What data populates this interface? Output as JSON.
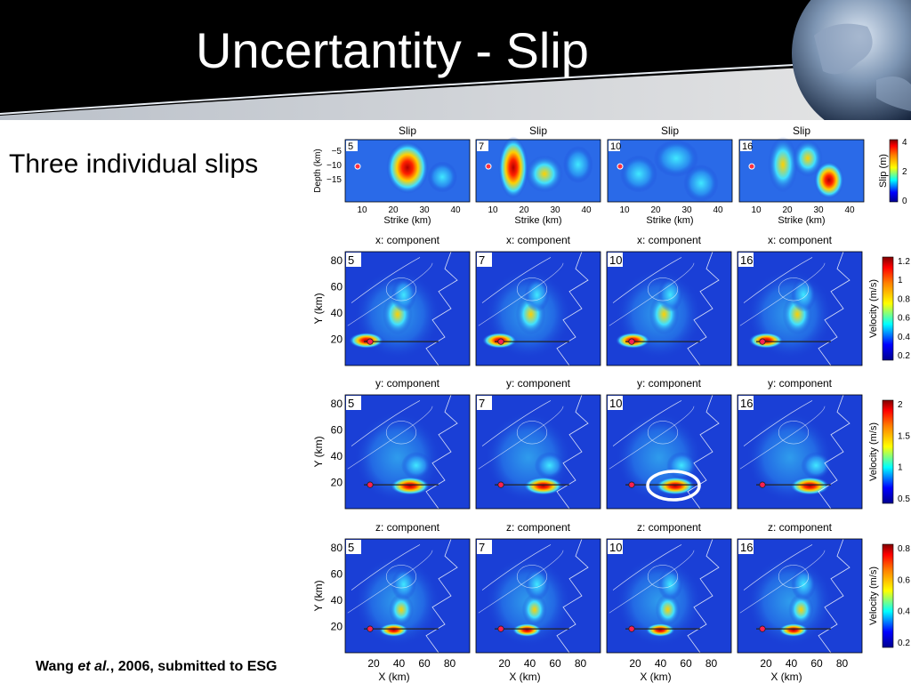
{
  "slide": {
    "title": "Uncertantity - Slip",
    "subtitle": "Three individual slips",
    "citation": {
      "author": "Wang ",
      "etal": "et al.",
      "rest": ", 2006, submitted to ESG"
    }
  },
  "colors": {
    "header_bg": "#000000",
    "map_blue": "#1a3fd6",
    "highlight_circle": "#ffffff"
  },
  "figure": {
    "slip_row": {
      "panel_title": "Slip",
      "ylabel": "Depth (km)",
      "xlabel": "Strike (km)",
      "yticks": [
        "−5",
        "−10",
        "−15"
      ],
      "xticks": [
        "10",
        "20",
        "30",
        "40"
      ],
      "colorbar_label": "Slip (m)",
      "colorbar_ticks": [
        "4",
        "2",
        "0"
      ]
    },
    "model_numbers": [
      "5",
      "7",
      "10",
      "16"
    ],
    "component_rows": [
      {
        "title": "x: component",
        "colorbar_label": "Velocity (m/s)",
        "colorbar_ticks": [
          "1.2",
          "1",
          "0.8",
          "0.6",
          "0.4",
          "0.2"
        ]
      },
      {
        "title": "y: component",
        "colorbar_label": "Velocity (m/s)",
        "colorbar_ticks": [
          "2",
          "1.5",
          "1",
          "0.5"
        ]
      },
      {
        "title": "z: component",
        "colorbar_label": "Velocity (m/s)",
        "colorbar_ticks": [
          "0.8",
          "0.6",
          "0.4",
          "0.2"
        ]
      }
    ],
    "map_ylabel": "Y (km)",
    "map_yticks": [
      "80",
      "60",
      "40",
      "20"
    ],
    "map_xlabel": "X (km)",
    "map_xticks": [
      "20",
      "40",
      "60",
      "80"
    ]
  }
}
